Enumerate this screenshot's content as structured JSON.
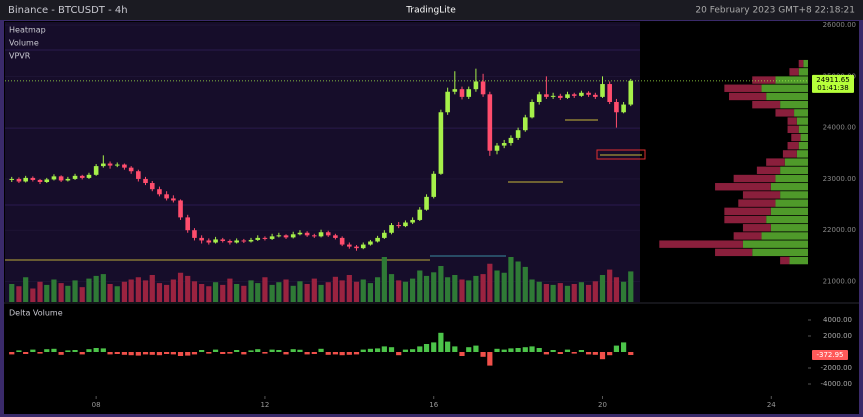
{
  "header": {
    "symbol": "Binance - BTCUSDT - 4h",
    "logo": "TradingLite",
    "datetime": "20 February 2023 GMT+8 22:18:21"
  },
  "indicators": [
    "Heatmap",
    "Volume",
    "VPVR"
  ],
  "chart_data": {
    "type": "candlestick",
    "xlim": [
      5.84,
      24.87
    ],
    "xticks": [
      {
        "value": 8,
        "label": "08"
      },
      12,
      16,
      20,
      24
    ],
    "ylim": [
      20600,
      26060
    ],
    "yticks": [
      {
        "value": 21000,
        "label": "21000.00"
      },
      {
        "value": 22000,
        "label": "22000.00"
      },
      {
        "value": 23000,
        "label": "23000.00"
      },
      {
        "value": 24000,
        "label": "24000.00"
      },
      {
        "value": 25000,
        "label": "25000.00"
      },
      {
        "value": 26000,
        "label": "26000.00"
      }
    ],
    "grid": true,
    "up_color": "#a6f04a",
    "down_color": "#ff4d6d",
    "countdown": "01:41:38",
    "x": [
      6,
      6.17,
      6.33,
      6.5,
      6.67,
      6.83,
      7,
      7.17,
      7.33,
      7.5,
      7.67,
      7.83,
      8,
      8.17,
      8.33,
      8.5,
      8.67,
      8.83,
      9,
      9.17,
      9.33,
      9.5,
      9.67,
      9.83,
      10,
      10.17,
      10.33,
      10.5,
      10.67,
      10.83,
      11,
      11.17,
      11.33,
      11.5,
      11.67,
      11.83,
      12,
      12.17,
      12.33,
      12.5,
      12.67,
      12.83,
      13,
      13.17,
      13.33,
      13.5,
      13.67,
      13.83,
      14,
      14.17,
      14.33,
      14.5,
      14.67,
      14.83,
      15,
      15.17,
      15.33,
      15.5,
      15.67,
      15.83,
      16,
      16.17,
      16.33,
      16.5,
      16.67,
      16.83,
      17,
      17.17,
      17.33,
      17.5,
      17.67,
      17.83,
      18,
      18.17,
      18.33,
      18.5,
      18.67,
      18.83,
      19,
      19.17,
      19.33,
      19.5,
      19.67,
      19.83,
      20,
      20.17,
      20.33,
      20.5,
      20.67
    ],
    "ohlc": [
      [
        22980,
        23040,
        22940,
        23000
      ],
      [
        23000,
        23030,
        22920,
        22950
      ],
      [
        22950,
        23060,
        22930,
        23020
      ],
      [
        23020,
        23050,
        22950,
        22980
      ],
      [
        22980,
        23000,
        22900,
        22940
      ],
      [
        22940,
        23020,
        22920,
        22990
      ],
      [
        22990,
        23090,
        22970,
        23050
      ],
      [
        23050,
        23070,
        22940,
        22970
      ],
      [
        22970,
        23040,
        22950,
        23000
      ],
      [
        23000,
        23100,
        22980,
        23060
      ],
      [
        23060,
        23080,
        22990,
        23020
      ],
      [
        23020,
        23120,
        23000,
        23080
      ],
      [
        23080,
        23290,
        23060,
        23250
      ],
      [
        23250,
        23460,
        23220,
        23300
      ],
      [
        23300,
        23340,
        23200,
        23260
      ],
      [
        23260,
        23320,
        23230,
        23280
      ],
      [
        23280,
        23300,
        23180,
        23220
      ],
      [
        23220,
        23250,
        23100,
        23150
      ],
      [
        23150,
        23180,
        22950,
        23000
      ],
      [
        23000,
        23040,
        22880,
        22920
      ],
      [
        22920,
        22960,
        22760,
        22800
      ],
      [
        22800,
        22850,
        22660,
        22700
      ],
      [
        22700,
        22760,
        22580,
        22620
      ],
      [
        22620,
        22680,
        22540,
        22580
      ],
      [
        22580,
        22600,
        22200,
        22250
      ],
      [
        22250,
        22300,
        21950,
        22000
      ],
      [
        22000,
        22040,
        21800,
        21850
      ],
      [
        21850,
        21900,
        21740,
        21800
      ],
      [
        21800,
        21840,
        21720,
        21760
      ],
      [
        21760,
        21870,
        21740,
        21820
      ],
      [
        21820,
        21850,
        21760,
        21790
      ],
      [
        21790,
        21820,
        21720,
        21760
      ],
      [
        21760,
        21840,
        21740,
        21800
      ],
      [
        21800,
        21830,
        21750,
        21780
      ],
      [
        21780,
        21850,
        21760,
        21810
      ],
      [
        21810,
        21900,
        21790,
        21850
      ],
      [
        21850,
        21880,
        21800,
        21830
      ],
      [
        21830,
        21930,
        21810,
        21880
      ],
      [
        21880,
        21950,
        21860,
        21900
      ],
      [
        21900,
        21920,
        21830,
        21860
      ],
      [
        21860,
        21970,
        21840,
        21920
      ],
      [
        21920,
        22000,
        21900,
        21950
      ],
      [
        21950,
        21980,
        21870,
        21900
      ],
      [
        21900,
        21930,
        21850,
        21880
      ],
      [
        21880,
        22010,
        21860,
        21960
      ],
      [
        21960,
        21990,
        21870,
        21900
      ],
      [
        21900,
        21930,
        21820,
        21850
      ],
      [
        21850,
        21880,
        21690,
        21720
      ],
      [
        21720,
        21760,
        21640,
        21680
      ],
      [
        21680,
        21710,
        21600,
        21650
      ],
      [
        21650,
        21760,
        21630,
        21720
      ],
      [
        21720,
        21810,
        21700,
        21780
      ],
      [
        21780,
        21890,
        21760,
        21850
      ],
      [
        21850,
        22000,
        21830,
        21950
      ],
      [
        21950,
        22140,
        21920,
        22100
      ],
      [
        22100,
        22160,
        22040,
        22080
      ],
      [
        22080,
        22190,
        22060,
        22150
      ],
      [
        22150,
        22250,
        22120,
        22200
      ],
      [
        22200,
        22450,
        22180,
        22400
      ],
      [
        22400,
        22700,
        22380,
        22650
      ],
      [
        22650,
        23150,
        22620,
        23100
      ],
      [
        23100,
        24350,
        23080,
        24300
      ],
      [
        24300,
        24780,
        24250,
        24700
      ],
      [
        24700,
        25100,
        24650,
        24750
      ],
      [
        24750,
        24800,
        24550,
        24600
      ],
      [
        24600,
        24800,
        24560,
        24750
      ],
      [
        24750,
        25150,
        24700,
        24900
      ],
      [
        24900,
        25050,
        24600,
        24650
      ],
      [
        24650,
        24700,
        23450,
        23550
      ],
      [
        23550,
        23700,
        23480,
        23650
      ],
      [
        23650,
        23760,
        23600,
        23700
      ],
      [
        23700,
        23850,
        23650,
        23800
      ],
      [
        23800,
        24000,
        23760,
        23950
      ],
      [
        23950,
        24250,
        23920,
        24200
      ],
      [
        24200,
        24550,
        24180,
        24500
      ],
      [
        24500,
        24700,
        24450,
        24650
      ],
      [
        24650,
        25000,
        24560,
        24600
      ],
      [
        24600,
        24680,
        24560,
        24620
      ],
      [
        24620,
        24660,
        24540,
        24580
      ],
      [
        24580,
        24700,
        24560,
        24650
      ],
      [
        24650,
        24680,
        24580,
        24620
      ],
      [
        24620,
        24720,
        24600,
        24680
      ],
      [
        24680,
        24710,
        24600,
        24640
      ],
      [
        24640,
        24680,
        24560,
        24600
      ],
      [
        24600,
        25000,
        24580,
        24850
      ],
      [
        24850,
        24900,
        24460,
        24500
      ],
      [
        24500,
        24560,
        24000,
        24300
      ],
      [
        24300,
        24500,
        24280,
        24450
      ],
      [
        24450,
        24950,
        24420,
        24911.65
      ]
    ],
    "volume_ylim": [
      0,
      100
    ],
    "volume": [
      40,
      35,
      55,
      30,
      45,
      38,
      50,
      42,
      36,
      48,
      33,
      52,
      58,
      62,
      40,
      35,
      45,
      50,
      55,
      48,
      60,
      42,
      38,
      50,
      65,
      58,
      46,
      40,
      35,
      44,
      38,
      52,
      40,
      36,
      48,
      42,
      55,
      38,
      44,
      50,
      36,
      46,
      40,
      52,
      38,
      44,
      56,
      48,
      60,
      45,
      50,
      42,
      55,
      100,
      62,
      48,
      45,
      52,
      70,
      58,
      66,
      80,
      55,
      60,
      50,
      48,
      58,
      62,
      85,
      70,
      65,
      100,
      90,
      78,
      50,
      45,
      40,
      38,
      42,
      36,
      40,
      44,
      38,
      46,
      60,
      72,
      55,
      45,
      68
    ],
    "delta_title": "Delta Volume",
    "y2lim": [
      -5375,
      5875
    ],
    "y2ticks": [
      {
        "value": -4000,
        "label": "-4000.00"
      },
      {
        "value": -2000,
        "label": "-2000.00"
      },
      {
        "value": 2000,
        "label": "2000.00"
      },
      {
        "value": 4000,
        "label": "4000.00"
      }
    ],
    "delta": [
      -300,
      200,
      -250,
      300,
      -200,
      350,
      400,
      -350,
      200,
      250,
      -300,
      350,
      500,
      450,
      -300,
      -250,
      -350,
      -400,
      -450,
      -300,
      -350,
      -400,
      -250,
      -300,
      -500,
      -450,
      -300,
      250,
      -200,
      300,
      -250,
      -200,
      250,
      -300,
      200,
      350,
      -200,
      300,
      250,
      -300,
      350,
      280,
      -300,
      -250,
      400,
      -350,
      -300,
      -400,
      -350,
      -300,
      300,
      400,
      450,
      700,
      600,
      -400,
      300,
      350,
      700,
      1000,
      1200,
      2400,
      1300,
      700,
      -500,
      600,
      800,
      -600,
      -1700,
      400,
      300,
      450,
      500,
      600,
      700,
      500,
      -300,
      250,
      -250,
      300,
      -200,
      250,
      -300,
      -350,
      -900,
      -400,
      800,
      1200,
      -372.95
    ],
    "vpvr_xlim": [
      0,
      170
    ],
    "vpvr_levels": [
      21400,
      21560,
      21720,
      21880,
      22040,
      22200,
      22360,
      22520,
      22680,
      22840,
      23000,
      23160,
      23320,
      23480,
      23640,
      23800,
      23960,
      24120,
      24280,
      24440,
      24600,
      24760,
      24920,
      25080,
      25240
    ],
    "vpvr_buy": [
      20,
      60,
      70,
      50,
      40,
      45,
      40,
      35,
      30,
      40,
      35,
      30,
      25,
      12,
      10,
      8,
      10,
      12,
      15,
      30,
      45,
      50,
      35,
      10,
      5
    ],
    "vpvr_sell": [
      10,
      40,
      90,
      30,
      30,
      45,
      50,
      40,
      40,
      60,
      45,
      25,
      20,
      15,
      12,
      10,
      12,
      10,
      20,
      30,
      40,
      40,
      25,
      10,
      5
    ]
  }
}
